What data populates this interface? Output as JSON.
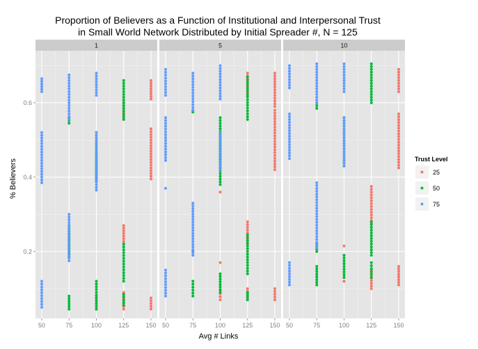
{
  "chart_data": {
    "type": "scatter",
    "title_line1": "Proportion of Believers as a Function of Institutional and Interpersonal Trust",
    "title_line2": "in Small World Network Distributed by Initial Spreader #, N = 125",
    "xlabel": "Avg # Links",
    "ylabel": "% Believers",
    "x_categories": [
      "50",
      "75",
      "100",
      "125",
      "150"
    ],
    "y_ticks": [
      0.2,
      0.4,
      0.6
    ],
    "y_tick_labels": [
      "0.2",
      "0.4",
      "0.6"
    ],
    "ylim": [
      0.02,
      0.74
    ],
    "facets": [
      "1",
      "5",
      "10"
    ],
    "grid": true,
    "legend": {
      "title": "Trust Level",
      "position": "right",
      "entries": [
        "25",
        "50",
        "75"
      ]
    },
    "colors": {
      "25": "#F8766D",
      "50": "#00BA38",
      "75": "#619CFF"
    },
    "series": [
      {
        "facet": "1",
        "trust": "75",
        "x": "50",
        "ranges": [
          [
            0.63,
            0.665
          ],
          [
            0.385,
            0.52
          ],
          [
            0.05,
            0.12
          ]
        ]
      },
      {
        "facet": "1",
        "trust": "75",
        "x": "75",
        "ranges": [
          [
            0.555,
            0.675
          ],
          [
            0.175,
            0.3
          ]
        ]
      },
      {
        "facet": "1",
        "trust": "50",
        "x": "75",
        "ranges": [
          [
            0.545,
            0.56
          ],
          [
            0.185,
            0.27
          ],
          [
            0.045,
            0.08
          ]
        ]
      },
      {
        "facet": "1",
        "trust": "75",
        "x": "100",
        "ranges": [
          [
            0.62,
            0.68
          ],
          [
            0.365,
            0.52
          ]
        ]
      },
      {
        "facet": "1",
        "trust": "50",
        "x": "100",
        "ranges": [
          [
            0.39,
            0.52
          ],
          [
            0.045,
            0.12
          ]
        ]
      },
      {
        "facet": "1",
        "trust": "25",
        "x": "100",
        "ranges": [
          [
            0.045,
            0.08
          ]
        ]
      },
      {
        "facet": "1",
        "trust": "50",
        "x": "125",
        "ranges": [
          [
            0.555,
            0.66
          ],
          [
            0.12,
            0.22
          ],
          [
            0.055,
            0.085
          ]
        ]
      },
      {
        "facet": "1",
        "trust": "25",
        "x": "125",
        "ranges": [
          [
            0.56,
            0.6
          ],
          [
            0.22,
            0.27
          ],
          [
            0.045,
            0.09
          ]
        ]
      },
      {
        "facet": "1",
        "trust": "25",
        "x": "150",
        "ranges": [
          [
            0.61,
            0.66
          ],
          [
            0.395,
            0.53
          ],
          [
            0.045,
            0.075
          ]
        ]
      },
      {
        "facet": "5",
        "trust": "75",
        "x": "50",
        "ranges": [
          [
            0.62,
            0.69
          ],
          [
            0.445,
            0.56
          ],
          [
            0.37,
            0.37
          ],
          [
            0.08,
            0.15
          ]
        ]
      },
      {
        "facet": "5",
        "trust": "75",
        "x": "75",
        "ranges": [
          [
            0.58,
            0.68
          ],
          [
            0.19,
            0.33
          ]
        ]
      },
      {
        "facet": "5",
        "trust": "50",
        "x": "75",
        "ranges": [
          [
            0.575,
            0.58
          ],
          [
            0.19,
            0.2
          ],
          [
            0.08,
            0.12
          ]
        ]
      },
      {
        "facet": "5",
        "trust": "75",
        "x": "100",
        "ranges": [
          [
            0.61,
            0.7
          ],
          [
            0.42,
            0.52
          ]
        ]
      },
      {
        "facet": "5",
        "trust": "50",
        "x": "100",
        "ranges": [
          [
            0.38,
            0.56
          ],
          [
            0.09,
            0.14
          ]
        ]
      },
      {
        "facet": "5",
        "trust": "25",
        "x": "100",
        "ranges": [
          [
            0.07,
            0.095
          ],
          [
            0.17,
            0.17
          ],
          [
            0.36,
            0.36
          ]
        ]
      },
      {
        "facet": "5",
        "trust": "50",
        "x": "125",
        "ranges": [
          [
            0.555,
            0.67
          ],
          [
            0.14,
            0.245
          ],
          [
            0.07,
            0.09
          ]
        ]
      },
      {
        "facet": "5",
        "trust": "25",
        "x": "125",
        "ranges": [
          [
            0.62,
            0.68
          ],
          [
            0.22,
            0.28
          ],
          [
            0.07,
            0.1
          ]
        ]
      },
      {
        "facet": "5",
        "trust": "25",
        "x": "150",
        "ranges": [
          [
            0.59,
            0.68
          ],
          [
            0.42,
            0.58
          ],
          [
            0.07,
            0.1
          ]
        ]
      },
      {
        "facet": "10",
        "trust": "75",
        "x": "50",
        "ranges": [
          [
            0.64,
            0.7
          ],
          [
            0.45,
            0.57
          ],
          [
            0.11,
            0.17
          ]
        ]
      },
      {
        "facet": "10",
        "trust": "75",
        "x": "75",
        "ranges": [
          [
            0.6,
            0.705
          ],
          [
            0.21,
            0.385
          ]
        ]
      },
      {
        "facet": "10",
        "trust": "50",
        "x": "75",
        "ranges": [
          [
            0.585,
            0.6
          ],
          [
            0.2,
            0.22
          ],
          [
            0.11,
            0.16
          ]
        ]
      },
      {
        "facet": "10",
        "trust": "75",
        "x": "100",
        "ranges": [
          [
            0.63,
            0.705
          ],
          [
            0.43,
            0.56
          ]
        ]
      },
      {
        "facet": "10",
        "trust": "50",
        "x": "100",
        "ranges": [
          [
            0.43,
            0.56
          ],
          [
            0.13,
            0.19
          ]
        ]
      },
      {
        "facet": "10",
        "trust": "25",
        "x": "100",
        "ranges": [
          [
            0.12,
            0.13
          ],
          [
            0.215,
            0.215
          ]
        ]
      },
      {
        "facet": "10",
        "trust": "50",
        "x": "125",
        "ranges": [
          [
            0.6,
            0.705
          ],
          [
            0.19,
            0.28
          ],
          [
            0.13,
            0.17
          ]
        ]
      },
      {
        "facet": "10",
        "trust": "25",
        "x": "125",
        "ranges": [
          [
            0.275,
            0.375
          ],
          [
            0.1,
            0.15
          ]
        ]
      },
      {
        "facet": "10",
        "trust": "25",
        "x": "150",
        "ranges": [
          [
            0.63,
            0.69
          ],
          [
            0.425,
            0.57
          ],
          [
            0.11,
            0.16
          ]
        ]
      }
    ]
  }
}
